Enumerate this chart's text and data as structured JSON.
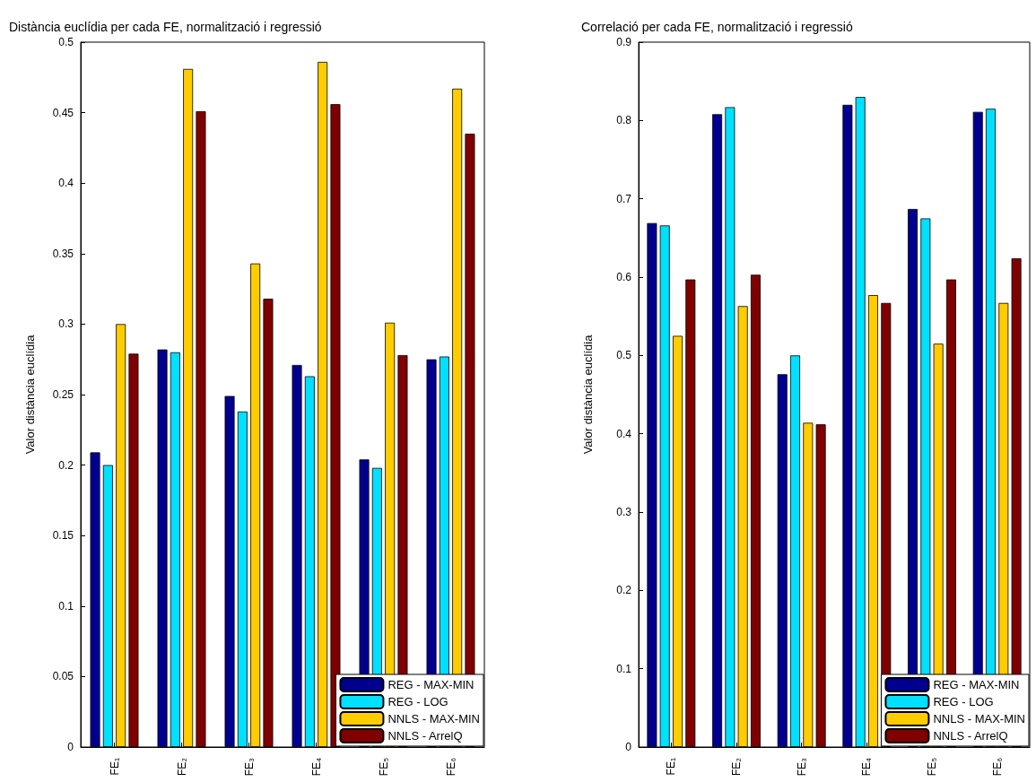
{
  "chart_data": [
    {
      "type": "bar",
      "title": "Distància euclídia per cada FE, normalització i regressió",
      "ylabel": "Valor distància euclídia",
      "categories": [
        "FE₁",
        "FE₂",
        "FE₃",
        "FE₄",
        "FE₅",
        "FE₆"
      ],
      "series": [
        {
          "name": "REG - MAX-MIN",
          "color": "#00008f",
          "values": [
            0.209,
            0.282,
            0.249,
            0.271,
            0.204,
            0.275
          ]
        },
        {
          "name": "REG - LOG",
          "color": "#00e0ff",
          "values": [
            0.2,
            0.28,
            0.238,
            0.263,
            0.198,
            0.277
          ]
        },
        {
          "name": "NNLS - MAX-MIN",
          "color": "#ffcc00",
          "values": [
            0.3,
            0.481,
            0.343,
            0.486,
            0.301,
            0.467
          ]
        },
        {
          "name": "NNLS - ArrelQ",
          "color": "#800000",
          "values": [
            0.279,
            0.451,
            0.318,
            0.456,
            0.278,
            0.435
          ]
        }
      ],
      "ylim": [
        0,
        0.5
      ],
      "yticks": [
        0,
        0.05,
        0.1,
        0.15,
        0.2,
        0.25,
        0.3,
        0.35,
        0.4,
        0.45,
        0.5
      ],
      "grid": false,
      "legend": "bottom right"
    },
    {
      "type": "bar",
      "title": "Correlació per cada FE, normalització i regressió",
      "ylabel": "Valor distància euclídia",
      "categories": [
        "FE₁",
        "FE₂",
        "FE₃",
        "FE₄",
        "FE₅",
        "FE₆"
      ],
      "series": [
        {
          "name": "REG - MAX-MIN",
          "color": "#00008f",
          "values": [
            0.669,
            0.808,
            0.476,
            0.82,
            0.687,
            0.811
          ]
        },
        {
          "name": "REG - LOG",
          "color": "#00e0ff",
          "values": [
            0.666,
            0.817,
            0.5,
            0.83,
            0.675,
            0.815
          ]
        },
        {
          "name": "NNLS - MAX-MIN",
          "color": "#ffcc00",
          "values": [
            0.525,
            0.563,
            0.414,
            0.577,
            0.515,
            0.567
          ]
        },
        {
          "name": "NNLS - ArrelQ",
          "color": "#800000",
          "values": [
            0.597,
            0.603,
            0.412,
            0.567,
            0.597,
            0.624
          ]
        }
      ],
      "ylim": [
        0,
        0.9
      ],
      "yticks": [
        0,
        0.1,
        0.2,
        0.3,
        0.4,
        0.5,
        0.6,
        0.7,
        0.8,
        0.9
      ],
      "grid": false,
      "legend": "bottom right"
    }
  ]
}
